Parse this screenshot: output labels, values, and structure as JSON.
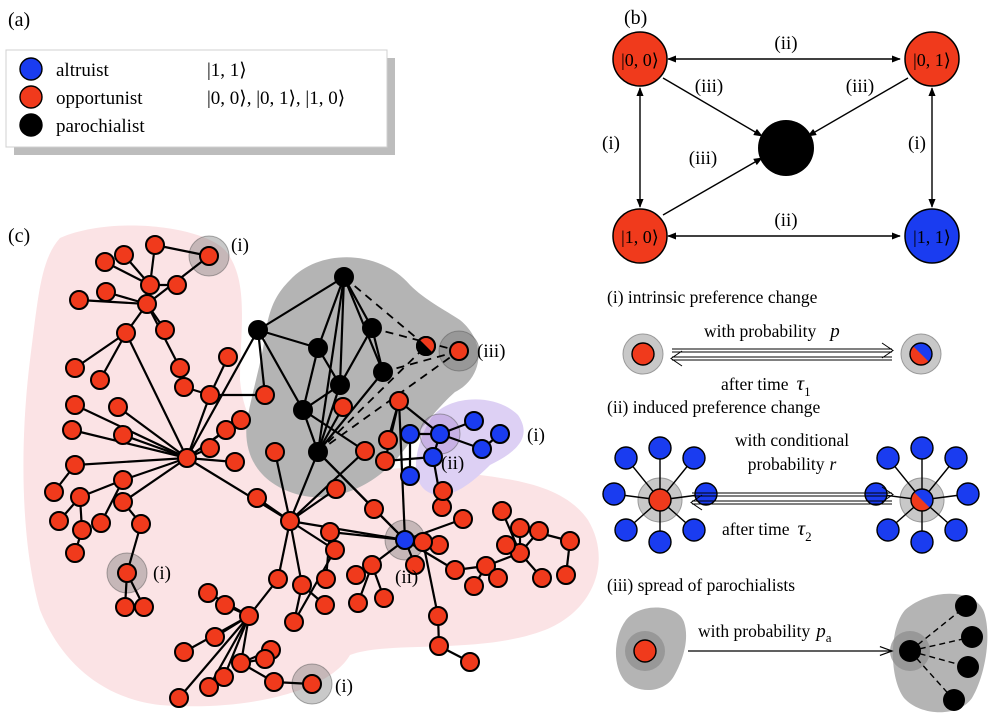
{
  "panels": {
    "a": "(a)",
    "b": "(b)",
    "c": "(c)"
  },
  "legend": {
    "items": [
      {
        "label": "altruist",
        "state": "|1, 1⟩",
        "color": "#1a3cf0"
      },
      {
        "label": "opportunist",
        "state": "|0, 0⟩, |0, 1⟩, |1, 0⟩",
        "color": "#f03a1c"
      },
      {
        "label": "parochialist",
        "state": "",
        "color": "#000000"
      }
    ]
  },
  "states": {
    "s00": "|0, 0⟩",
    "s01": "|0, 1⟩",
    "s10": "|1, 0⟩",
    "s11": "|1, 1⟩"
  },
  "transitions": {
    "i": "(i)",
    "ii": "(ii)",
    "iii": "(iii)"
  },
  "mechanisms": {
    "m1_title": "(i) intrinsic preference change",
    "m1_forward": "with probability",
    "m1_forward_var": "p",
    "m1_back": "after time",
    "m1_back_var": "τ",
    "m1_back_sub": "1",
    "m2_title": "(ii) induced preference change",
    "m2_forward_1": "with conditional",
    "m2_forward_2": "probability",
    "m2_forward_var": "r",
    "m2_back": "after time",
    "m2_back_var": "τ",
    "m2_back_sub": "2",
    "m3_title": "(iii) spread of parochialists",
    "m3_forward": "with probability",
    "m3_forward_var": "p",
    "m3_forward_sub": "a"
  },
  "network_labels": {
    "i": "(i)",
    "ii": "(ii)",
    "iii": "(iii)"
  },
  "colors": {
    "opportunist": "#f03a1c",
    "altruist": "#1a3cf0",
    "parochialist": "#000000",
    "pink_region": "#fbe3e5",
    "gray_region": "#b4b4b4",
    "purple_region": "#ddd0f4",
    "legend_shadow": "#bdbdbd"
  }
}
